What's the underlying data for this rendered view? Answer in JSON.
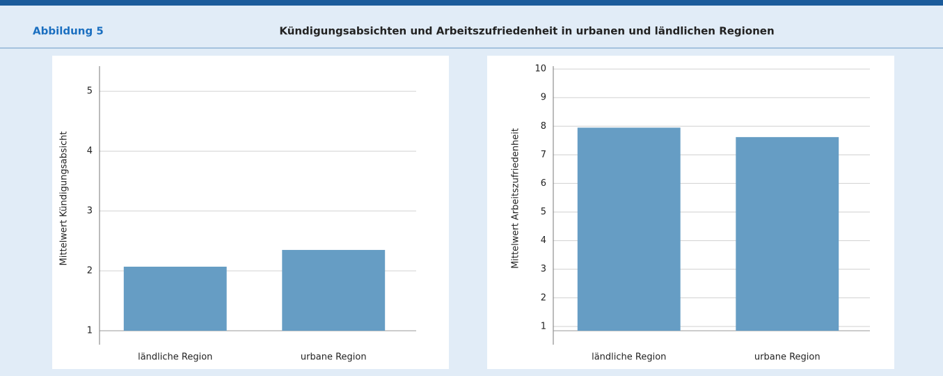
{
  "header": {
    "label": "Abbildung 5",
    "title": "Kündigungsabsichten und Arbeitszufriedenheit in urbanen und ländlichen Regionen"
  },
  "chart_data": [
    {
      "type": "bar",
      "y_label": "Mittelwert Kündigungsabsicht",
      "categories": [
        "ländliche Region",
        "urbane Region"
      ],
      "values": [
        2.07,
        2.35
      ],
      "color": "#669dc4",
      "ylim": [
        1,
        5.42
      ],
      "yticks": [
        1,
        2,
        3,
        4,
        5
      ],
      "grid": true
    },
    {
      "type": "bar",
      "y_label": "Mittelwert Arbeitszufriedenheit",
      "categories": [
        "ländliche Region",
        "urbane Region"
      ],
      "values": [
        7.95,
        7.62
      ],
      "color": "#669dc4",
      "ylim": [
        0.85,
        10.1
      ],
      "yticks": [
        1,
        2,
        3,
        4,
        5,
        6,
        7,
        8,
        9,
        10
      ],
      "grid": true
    }
  ]
}
